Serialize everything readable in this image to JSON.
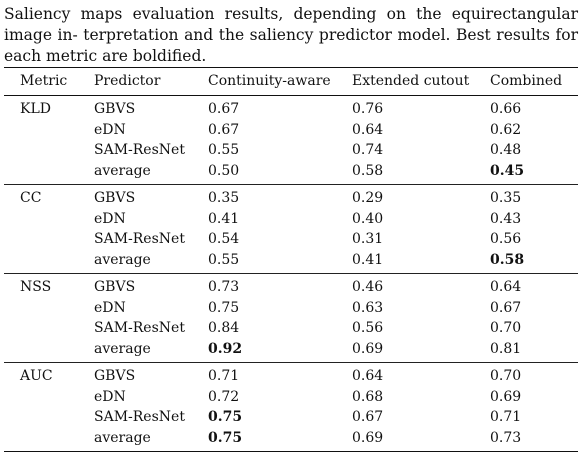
{
  "caption": {
    "line1": "Saliency maps evaluation results, depending on the equirectangular image in-",
    "line2": "terpretation and the saliency predictor model. Best results for each metric are",
    "line3": "boldified."
  },
  "table": {
    "headers": [
      "Metric",
      "Predictor",
      "Continuity-aware",
      "Extended cutout",
      "Combined"
    ],
    "groups": [
      {
        "metric": "KLD",
        "rows": [
          {
            "predictor": "GBVS",
            "continuity": "0.67",
            "extended": "0.76",
            "combined": "0.66"
          },
          {
            "predictor": "eDN",
            "continuity": "0.67",
            "extended": "0.64",
            "combined": "0.62"
          },
          {
            "predictor": "SAM-ResNet",
            "continuity": "0.55",
            "extended": "0.74",
            "combined": "0.48"
          },
          {
            "predictor": "average",
            "continuity": "0.50",
            "extended": "0.58",
            "combined": "0.45"
          }
        ]
      },
      {
        "metric": "CC",
        "rows": [
          {
            "predictor": "GBVS",
            "continuity": "0.35",
            "extended": "0.29",
            "combined": "0.35"
          },
          {
            "predictor": "eDN",
            "continuity": "0.41",
            "extended": "0.40",
            "combined": "0.43"
          },
          {
            "predictor": "SAM-ResNet",
            "continuity": "0.54",
            "extended": "0.31",
            "combined": "0.56"
          },
          {
            "predictor": "average",
            "continuity": "0.55",
            "extended": "0.41",
            "combined": "0.58"
          }
        ]
      },
      {
        "metric": "NSS",
        "rows": [
          {
            "predictor": "GBVS",
            "continuity": "0.73",
            "extended": "0.46",
            "combined": "0.64"
          },
          {
            "predictor": "eDN",
            "continuity": "0.75",
            "extended": "0.63",
            "combined": "0.67"
          },
          {
            "predictor": "SAM-ResNet",
            "continuity": "0.84",
            "extended": "0.56",
            "combined": "0.70"
          },
          {
            "predictor": "average",
            "continuity": "0.92",
            "extended": "0.69",
            "combined": "0.81"
          }
        ]
      },
      {
        "metric": "AUC",
        "rows": [
          {
            "predictor": "GBVS",
            "continuity": "0.71",
            "extended": "0.64",
            "combined": "0.70"
          },
          {
            "predictor": "eDN",
            "continuity": "0.72",
            "extended": "0.68",
            "combined": "0.69"
          },
          {
            "predictor": "SAM-ResNet",
            "continuity": "0.75",
            "extended": "0.67",
            "combined": "0.71"
          },
          {
            "predictor": "average",
            "continuity": "0.75",
            "extended": "0.69",
            "combined": "0.73"
          }
        ]
      }
    ]
  },
  "chart_data": {
    "type": "table",
    "columns": [
      "Metric",
      "Predictor",
      "Continuity-aware",
      "Extended cutout",
      "Combined"
    ],
    "rows": [
      [
        "KLD",
        "GBVS",
        0.67,
        0.76,
        0.66
      ],
      [
        "KLD",
        "eDN",
        0.67,
        0.64,
        0.62
      ],
      [
        "KLD",
        "SAM-ResNet",
        0.55,
        0.74,
        0.48
      ],
      [
        "KLD",
        "average",
        0.5,
        0.58,
        0.45
      ],
      [
        "CC",
        "GBVS",
        0.35,
        0.29,
        0.35
      ],
      [
        "CC",
        "eDN",
        0.41,
        0.4,
        0.43
      ],
      [
        "CC",
        "SAM-ResNet",
        0.54,
        0.31,
        0.56
      ],
      [
        "CC",
        "average",
        0.55,
        0.41,
        0.58
      ],
      [
        "NSS",
        "GBVS",
        0.73,
        0.46,
        0.64
      ],
      [
        "NSS",
        "eDN",
        0.75,
        0.63,
        0.67
      ],
      [
        "NSS",
        "SAM-ResNet",
        0.84,
        0.56,
        0.7
      ],
      [
        "NSS",
        "average",
        0.92,
        0.69,
        0.81
      ],
      [
        "AUC",
        "GBVS",
        0.71,
        0.64,
        0.7
      ],
      [
        "AUC",
        "eDN",
        0.72,
        0.68,
        0.69
      ],
      [
        "AUC",
        "SAM-ResNet",
        0.75,
        0.67,
        0.71
      ],
      [
        "AUC",
        "average",
        0.75,
        0.69,
        0.73
      ]
    ],
    "bold_cells": [
      [
        "KLD",
        "average",
        "Combined"
      ],
      [
        "CC",
        "average",
        "Combined"
      ],
      [
        "NSS",
        "average",
        "Continuity-aware"
      ],
      [
        "AUC",
        "SAM-ResNet",
        "Continuity-aware"
      ],
      [
        "AUC",
        "average",
        "Continuity-aware"
      ]
    ]
  }
}
